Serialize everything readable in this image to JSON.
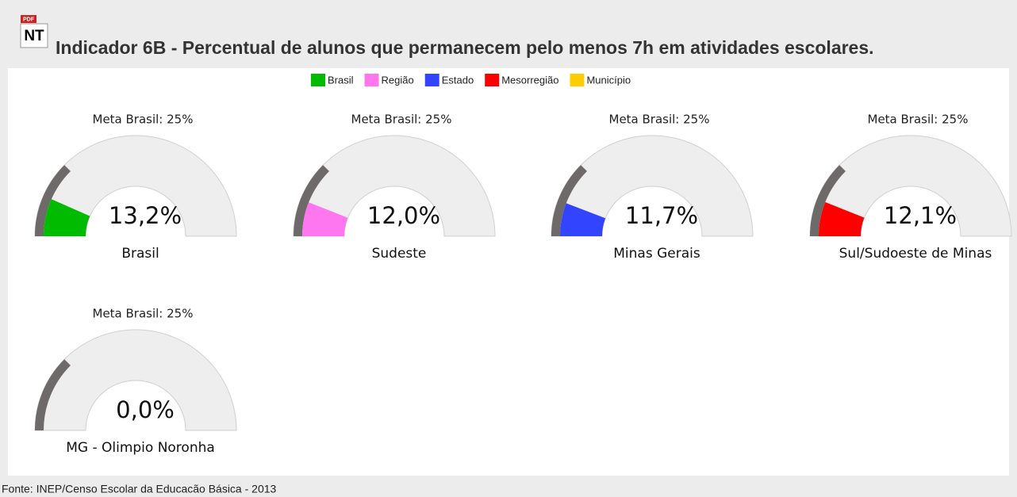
{
  "header": {
    "icon_pdf": "PDF",
    "icon_nt": "NT",
    "title": "Indicador 6B - Percentual de alunos que permanecem pelo menos 7h em atividades escolares."
  },
  "legend": [
    {
      "name": "Brasil",
      "color": "#00bb00"
    },
    {
      "name": "Região",
      "color": "#ff77ee"
    },
    {
      "name": "Estado",
      "color": "#3344ff"
    },
    {
      "name": "Mesorregião",
      "color": "#ff0000"
    },
    {
      "name": "Município",
      "color": "#ffcc00"
    }
  ],
  "chart_data": [
    {
      "type": "gauge",
      "title": "Meta Brasil: 25%",
      "target": 25,
      "name": "Brasil",
      "value": 13.2,
      "value_label": "13,2%",
      "color": "#00bb00",
      "ylim": [
        0,
        100
      ]
    },
    {
      "type": "gauge",
      "title": "Meta Brasil: 25%",
      "target": 25,
      "name": "Sudeste",
      "value": 12.0,
      "value_label": "12,0%",
      "color": "#ff77ee",
      "ylim": [
        0,
        100
      ]
    },
    {
      "type": "gauge",
      "title": "Meta Brasil: 25%",
      "target": 25,
      "name": "Minas Gerais",
      "value": 11.7,
      "value_label": "11,7%",
      "color": "#3344ff",
      "ylim": [
        0,
        100
      ]
    },
    {
      "type": "gauge",
      "title": "Meta Brasil: 25%",
      "target": 25,
      "name": "Sul/Sudoeste de Minas",
      "value": 12.1,
      "value_label": "12,1%",
      "color": "#ff0000",
      "ylim": [
        0,
        100
      ]
    },
    {
      "type": "gauge",
      "title": "Meta Brasil: 25%",
      "target": 25,
      "name": "MG - Olimpio Noronha",
      "value": 0.0,
      "value_label": "0,0%",
      "color": "#ffcc00",
      "ylim": [
        0,
        100
      ]
    }
  ],
  "footer": {
    "source": "Fonte: INEP/Censo Escolar da Educacão Básica - 2013"
  }
}
